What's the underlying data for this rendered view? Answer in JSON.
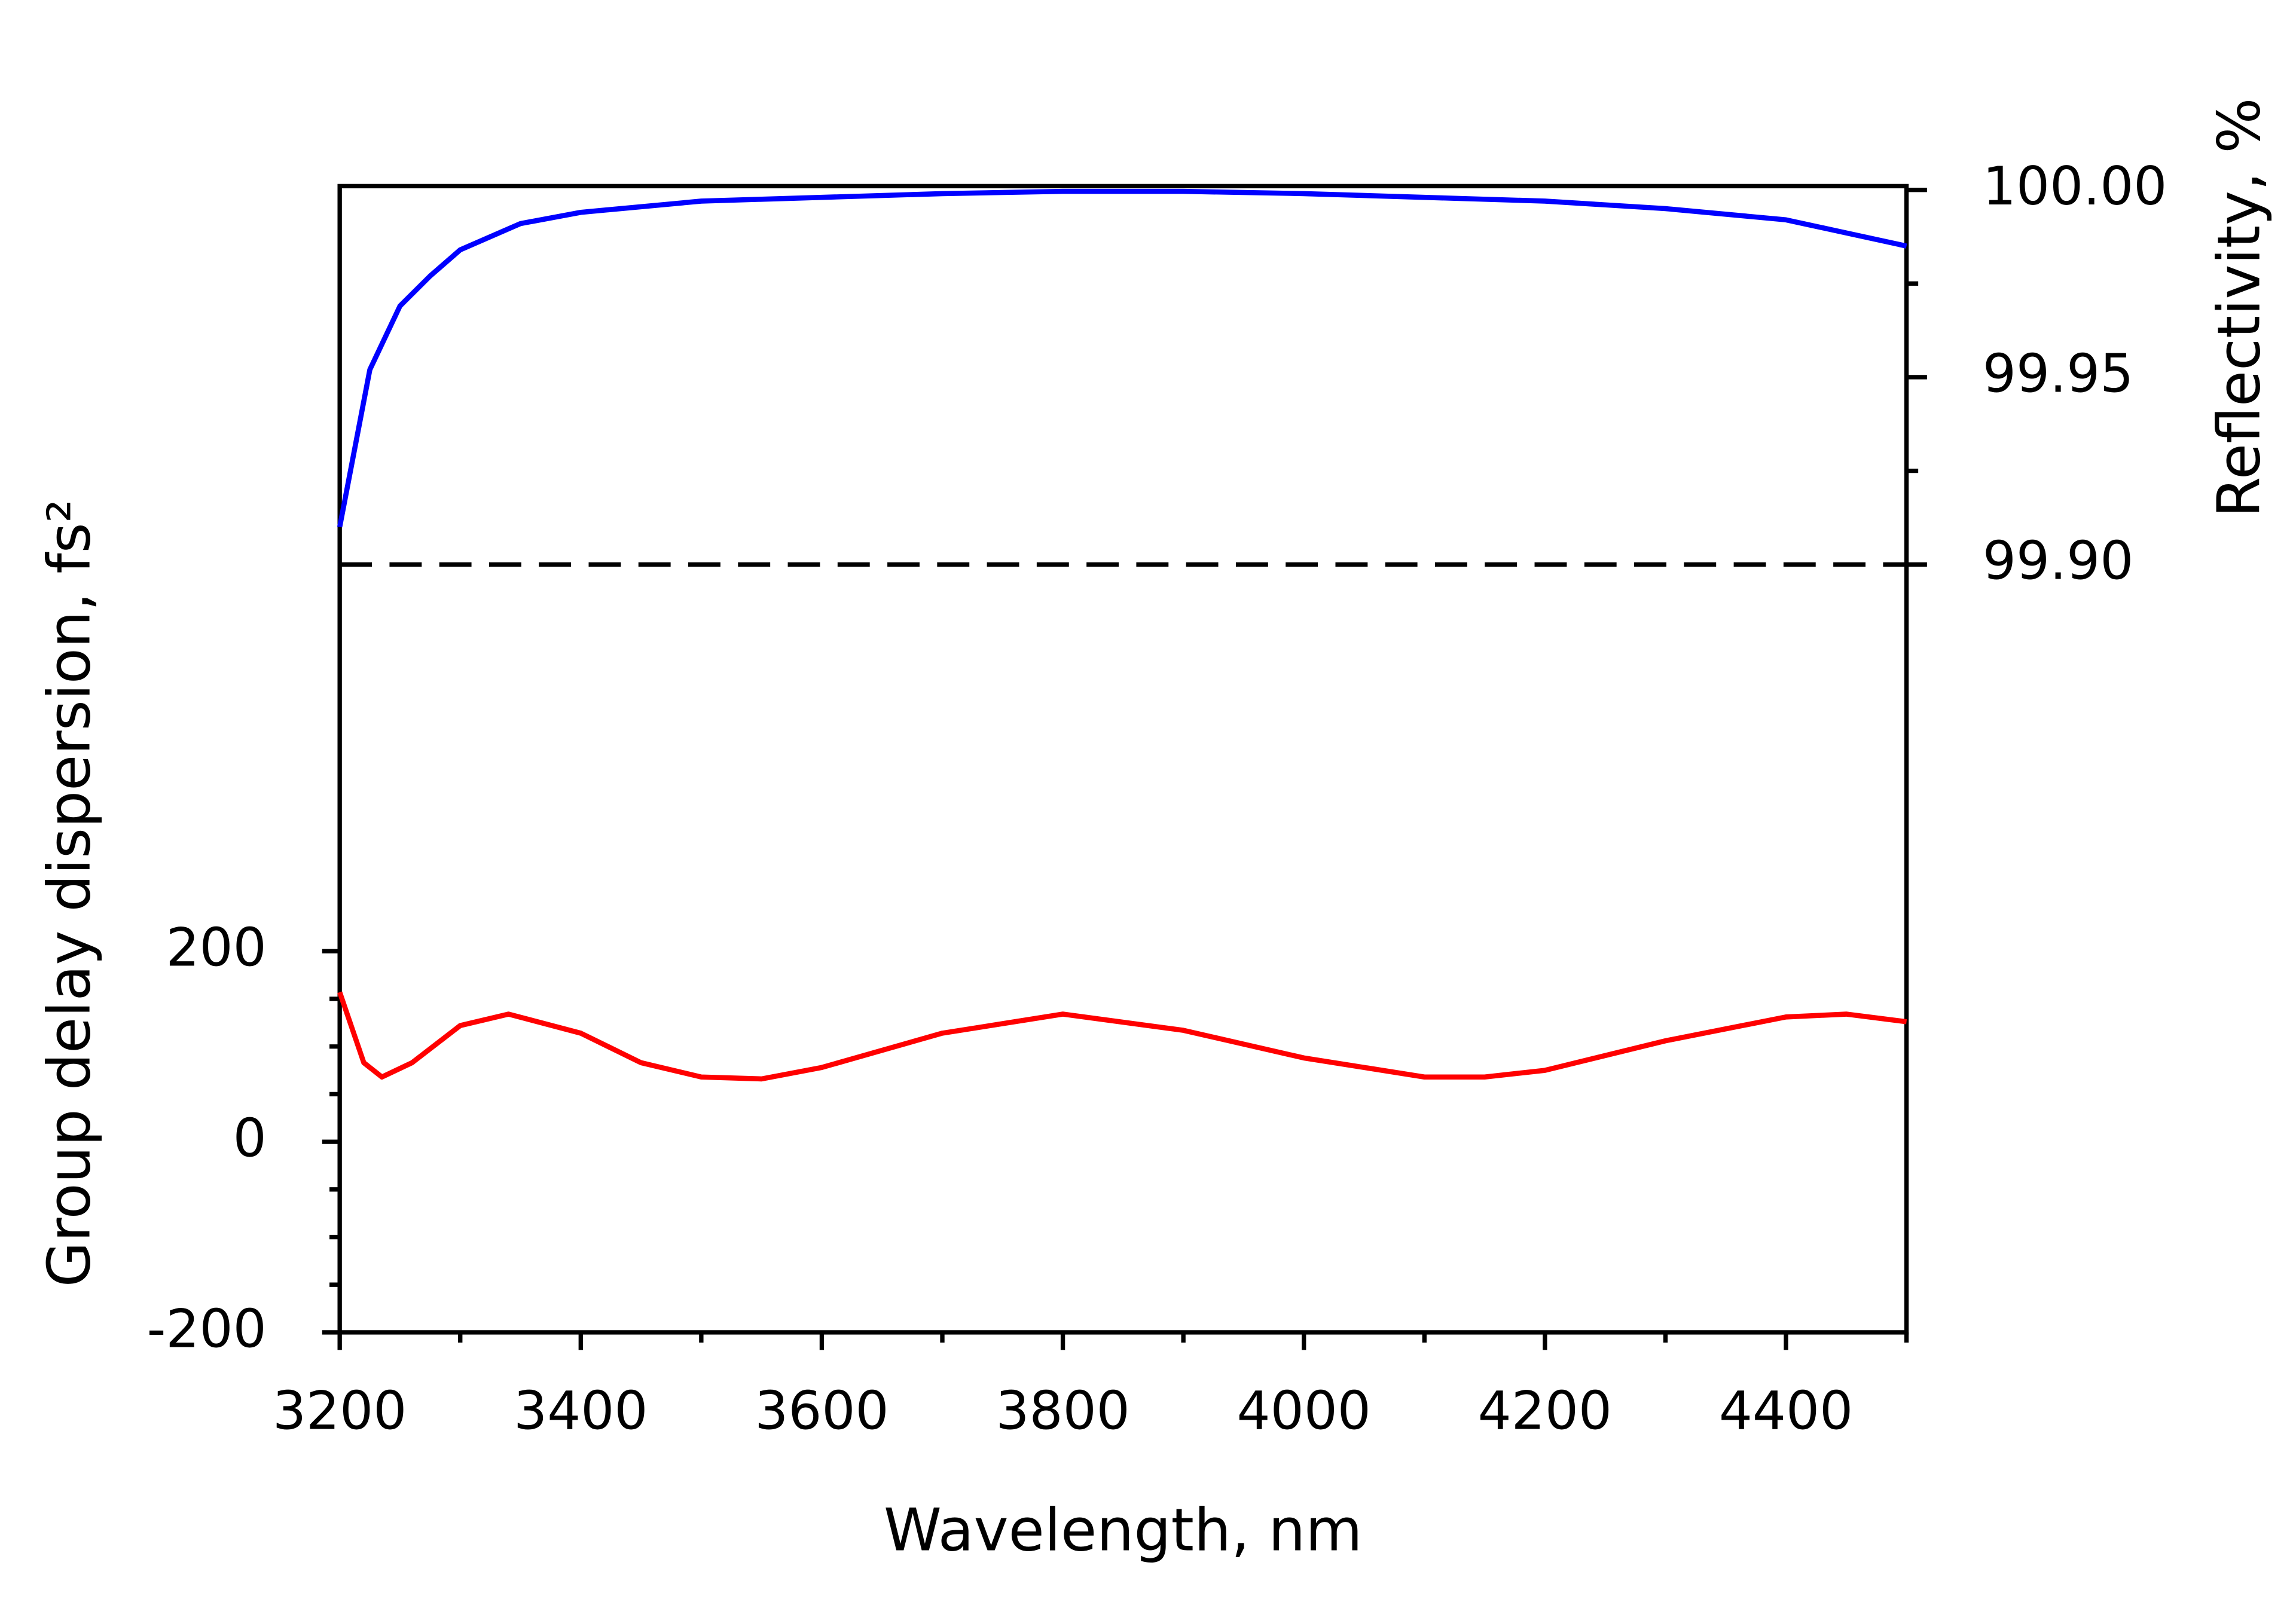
{
  "chart_data": {
    "type": "line",
    "xlabel": "Wavelength, nm",
    "ylabel": "Group delay dispersion, fs²",
    "y2label": "Reflectivity, %",
    "xlim": [
      3200,
      4500
    ],
    "xticks": [
      3200,
      3400,
      3600,
      3800,
      4000,
      4200,
      4400
    ],
    "ylim": [
      -200,
      1003
    ],
    "yticks": [
      -200,
      0,
      200
    ],
    "y2lim": [
      99.695,
      100.001
    ],
    "y2ticks": [
      {
        "value": 99.9,
        "label": "99.90"
      },
      {
        "value": 99.95,
        "label": "99.95"
      },
      {
        "value": 100,
        "label": "100.00"
      }
    ],
    "y2_reference": {
      "value": 99.9,
      "color": "#000000",
      "style": "dashed"
    },
    "series": [
      {
        "color": "#0000ff",
        "axis": "y2",
        "x": [
          3200,
          3225,
          3250,
          3275,
          3300,
          3350,
          3400,
          3500,
          3600,
          3700,
          3800,
          3900,
          4000,
          4100,
          4200,
          4300,
          4400,
          4500
        ],
        "values": [
          99.91,
          99.952,
          99.969,
          99.977,
          99.984,
          99.991,
          99.994,
          99.997,
          99.998,
          99.999,
          99.9996,
          99.9996,
          99.999,
          99.998,
          99.997,
          99.995,
          99.992,
          99.985
        ]
      },
      {
        "color": "#ff0000",
        "axis": "y",
        "x": [
          3200,
          3220,
          3235,
          3260,
          3300,
          3340,
          3400,
          3450,
          3500,
          3550,
          3600,
          3700,
          3800,
          3900,
          4000,
          4100,
          4150,
          4200,
          4300,
          4400,
          4450,
          4500
        ],
        "values": [
          157,
          83,
          68,
          83,
          122,
          134,
          114,
          83,
          68,
          66,
          78,
          114,
          134,
          117,
          88,
          68,
          68,
          75,
          106,
          131,
          134,
          126
        ]
      }
    ]
  }
}
